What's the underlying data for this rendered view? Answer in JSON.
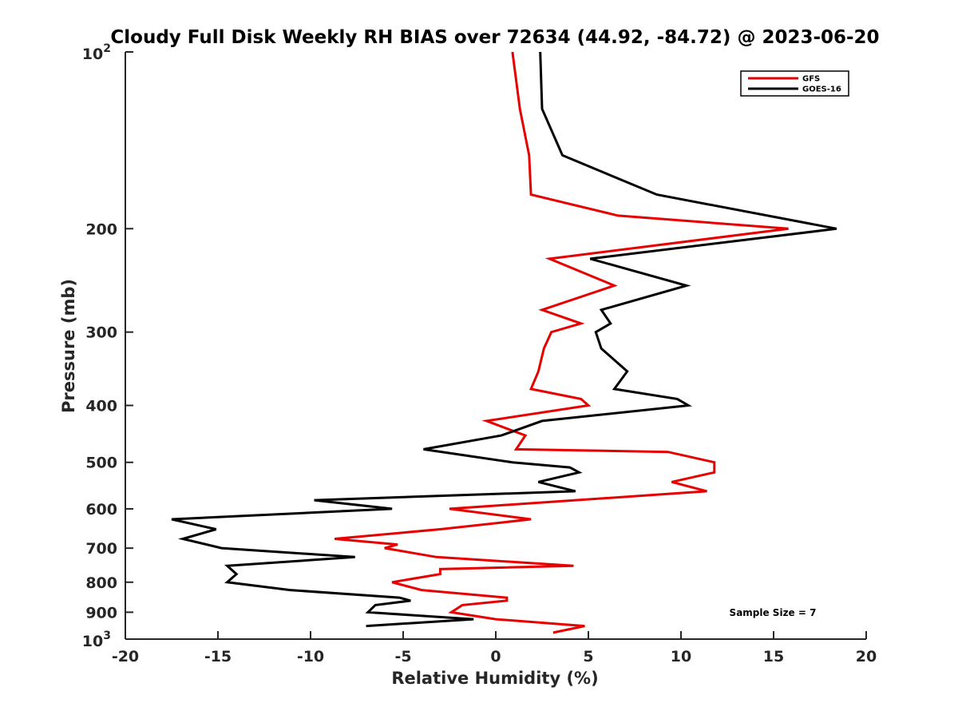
{
  "chart_data": {
    "type": "line",
    "title": "Cloudy Full Disk Weekly RH BIAS over 72634 (44.92, -84.72) @ 2023-06-20",
    "xlabel": "Relative Humidity (%)",
    "ylabel": "Pressure (mb)",
    "xlim": [
      -20,
      20
    ],
    "ylim": [
      100,
      1000
    ],
    "y_scale": "log",
    "y_reversed": true,
    "grid": false,
    "legend_position": "top-right",
    "x_ticks": [
      -20,
      -15,
      -10,
      -5,
      0,
      5,
      10,
      15,
      20
    ],
    "y_ticks": [
      {
        "value": 100,
        "base": "10",
        "exp": "2"
      },
      {
        "value": 200,
        "label": "200"
      },
      {
        "value": 300,
        "label": "300"
      },
      {
        "value": 400,
        "label": "400"
      },
      {
        "value": 500,
        "label": "500"
      },
      {
        "value": 600,
        "label": "600"
      },
      {
        "value": 700,
        "label": "700"
      },
      {
        "value": 800,
        "label": "800"
      },
      {
        "value": 900,
        "label": "900"
      },
      {
        "value": 1000,
        "base": "10",
        "exp": "3"
      }
    ],
    "annotation": "Sample Size = 7",
    "series": [
      {
        "name": "GFS",
        "color": "#e60000",
        "points": [
          [
            0.9,
            100
          ],
          [
            1.3,
            125
          ],
          [
            1.8,
            150
          ],
          [
            1.9,
            175
          ],
          [
            6.6,
            190
          ],
          [
            15.8,
            200
          ],
          [
            2.9,
            225
          ],
          [
            6.4,
            250
          ],
          [
            2.5,
            275
          ],
          [
            4.6,
            290
          ],
          [
            3.0,
            300
          ],
          [
            2.6,
            320
          ],
          [
            2.3,
            350
          ],
          [
            1.9,
            375
          ],
          [
            4.6,
            390
          ],
          [
            5.0,
            400
          ],
          [
            -0.5,
            425
          ],
          [
            1.6,
            450
          ],
          [
            1.1,
            475
          ],
          [
            9.3,
            480
          ],
          [
            11.8,
            500
          ],
          [
            11.8,
            520
          ],
          [
            9.5,
            540
          ],
          [
            11.4,
            560
          ],
          [
            -2.5,
            600
          ],
          [
            1.9,
            625
          ],
          [
            -3.0,
            650
          ],
          [
            -8.7,
            675
          ],
          [
            -5.3,
            690
          ],
          [
            -6.0,
            700
          ],
          [
            -3.2,
            725
          ],
          [
            4.2,
            750
          ],
          [
            -3.0,
            760
          ],
          [
            -3.0,
            775
          ],
          [
            -5.6,
            800
          ],
          [
            -4.0,
            825
          ],
          [
            0.6,
            850
          ],
          [
            0.6,
            860
          ],
          [
            -1.8,
            875
          ],
          [
            -2.4,
            900
          ],
          [
            0,
            925
          ],
          [
            4.8,
            950
          ],
          [
            3.1,
            975
          ]
        ]
      },
      {
        "name": "GOES-16",
        "color": "#000000",
        "points": [
          [
            2.4,
            100
          ],
          [
            2.5,
            125
          ],
          [
            3.6,
            150
          ],
          [
            8.7,
            175
          ],
          [
            18.4,
            200
          ],
          [
            5.1,
            225
          ],
          [
            10.3,
            250
          ],
          [
            5.7,
            275
          ],
          [
            6.2,
            290
          ],
          [
            5.4,
            300
          ],
          [
            5.7,
            320
          ],
          [
            7.1,
            350
          ],
          [
            6.4,
            375
          ],
          [
            9.8,
            390
          ],
          [
            10.4,
            400
          ],
          [
            2.5,
            425
          ],
          [
            0.3,
            450
          ],
          [
            -3.9,
            475
          ],
          [
            0.9,
            500
          ],
          [
            4.0,
            510
          ],
          [
            4.5,
            520
          ],
          [
            2.3,
            540
          ],
          [
            4.3,
            560
          ],
          [
            -9.8,
            580
          ],
          [
            -5.6,
            600
          ],
          [
            -17.5,
            625
          ],
          [
            -15.1,
            650
          ],
          [
            -16.9,
            675
          ],
          [
            -14.8,
            700
          ],
          [
            -7.6,
            725
          ],
          [
            -14.5,
            750
          ],
          [
            -14.0,
            775
          ],
          [
            -14.5,
            800
          ],
          [
            -11.1,
            825
          ],
          [
            -5.2,
            850
          ],
          [
            -4.6,
            860
          ],
          [
            -6.5,
            875
          ],
          [
            -6.9,
            900
          ],
          [
            -1.2,
            925
          ],
          [
            -7.0,
            950
          ]
        ]
      }
    ]
  }
}
